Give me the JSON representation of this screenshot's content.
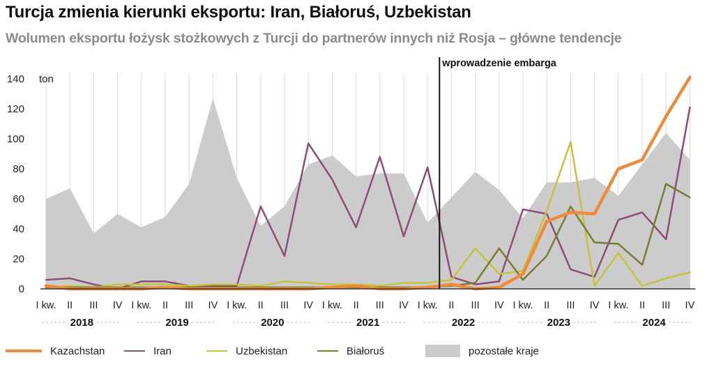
{
  "title": "Turcja zmienia kierunki eksportu: Iran, Białoruś, Uzbekistan",
  "subtitle": "Wolumen eksportu łożysk stożkowych z Turcji do partnerów innych niż Rosja – główne tendencje",
  "chart_data": {
    "type": "line",
    "unit_label": "ton",
    "ylim": [
      0,
      140
    ],
    "yticks": [
      0,
      20,
      40,
      60,
      80,
      100,
      120,
      140
    ],
    "grid": "vertical",
    "legend_position": "bottom",
    "quarter_labels": [
      "I kw.",
      "II",
      "III",
      "IV",
      "I kw.",
      "II",
      "III",
      "IV",
      "I kw.",
      "II",
      "III",
      "IV",
      "I kw.",
      "II",
      "III",
      "IV",
      "I kw.",
      "II",
      "III",
      "IV",
      "I kw.",
      "II",
      "III",
      "IV",
      "I kw.",
      "II",
      "III",
      "IV"
    ],
    "years": [
      "2018",
      "2019",
      "2020",
      "2021",
      "2022",
      "2023",
      "2024"
    ],
    "annotation": {
      "label": "wprowadzenie embarga",
      "x_index": 16.5
    },
    "series": [
      {
        "name": "pozostałe kraje",
        "kind": "area",
        "color": "#cccccc",
        "values": [
          60,
          67,
          37,
          50,
          41,
          48,
          70,
          127,
          74,
          42,
          55,
          83,
          89,
          75,
          77,
          77,
          44,
          61,
          78,
          66,
          47,
          71,
          71,
          74,
          62,
          83,
          104,
          86
        ]
      },
      {
        "name": "Kazachstan",
        "kind": "line",
        "color": "#ef8a3a",
        "width": 4.5,
        "values": [
          2,
          0,
          0,
          0,
          0,
          1,
          0,
          0,
          0,
          0,
          0,
          0,
          1,
          2,
          0,
          0,
          1,
          3,
          0,
          1,
          10,
          45,
          51,
          50,
          80,
          86,
          115,
          141
        ]
      },
      {
        "name": "Iran",
        "kind": "line",
        "color": "#8b4e74",
        "width": 2.5,
        "values": [
          6,
          7,
          3,
          0,
          5,
          5,
          2,
          2,
          2,
          55,
          22,
          97,
          73,
          41,
          88,
          35,
          81,
          8,
          3,
          5,
          53,
          50,
          13,
          8,
          46,
          51,
          33,
          121
        ]
      },
      {
        "name": "Uzbekistan",
        "kind": "line",
        "color": "#c3c43c",
        "width": 2.5,
        "values": [
          1,
          2,
          1,
          3,
          3,
          3,
          2,
          3,
          3,
          2,
          5,
          4,
          3,
          3,
          2,
          4,
          4,
          6,
          27,
          10,
          12,
          52,
          98,
          2,
          24,
          2,
          7,
          11
        ]
      },
      {
        "name": "Białoruś",
        "kind": "line",
        "color": "#7b7a30",
        "width": 2.5,
        "values": [
          1,
          1,
          1,
          1,
          1,
          1,
          1,
          1,
          1,
          1,
          1,
          1,
          1,
          1,
          1,
          1,
          1,
          2,
          4,
          27,
          6,
          22,
          55,
          31,
          30,
          16,
          70,
          61
        ]
      }
    ]
  },
  "legend": {
    "items": [
      {
        "label": "Kazachstan",
        "color": "#ef8a3a",
        "kind": "line"
      },
      {
        "label": "Iran",
        "color": "#8b4e74",
        "kind": "line"
      },
      {
        "label": "Uzbekistan",
        "color": "#c3c43c",
        "kind": "line"
      },
      {
        "label": "Białoruś",
        "color": "#7b7a30",
        "kind": "line"
      },
      {
        "label": "pozostałe kraje",
        "color": "#cccccc",
        "kind": "area"
      }
    ]
  }
}
